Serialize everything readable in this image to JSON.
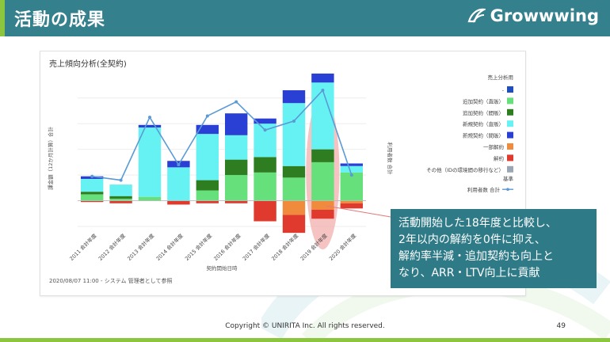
{
  "header": {
    "title": "活動の成果",
    "brand": "Growwwing"
  },
  "colors": {
    "header": "#35808d",
    "accent": "#8cc63f",
    "callout": "#2e7a87"
  },
  "callout": {
    "lines": [
      "活動開始した18年度と比較し、",
      "2年以内の解約を0件に抑え、",
      "解約率半減・追加契約も向上と",
      "なり、ARR・LTV向上に貢献"
    ]
  },
  "footer": {
    "copyright": "Copyright © UNIRITA Inc. All rights reserved.",
    "page": "49"
  },
  "chart_data": {
    "type": "bar",
    "title": "売上傾向分析(全契約)",
    "footnote": "2020/08/07 11:00 - システム 管理者として参照",
    "xlabel": "契約開始日時",
    "ylabel": "課金額（12か月計算）合計",
    "y2label": "利用者数 合計",
    "categories": [
      "2011 会計年度",
      "2012 会計年度",
      "2013 会計年度",
      "2014 会計年度",
      "2015 会計年度",
      "2016 会計年度",
      "2017 会計年度",
      "2018 会計年度",
      "2019 会計年度",
      "2020 会計年度"
    ],
    "ylim": [
      -1,
      4.3
    ],
    "legend": {
      "title": "売上分析用",
      "section2": "基準",
      "placement": "right"
    },
    "series": [
      {
        "name": "-",
        "color": "#1f4fbf",
        "values": [
          0,
          0,
          0,
          0,
          0,
          0,
          0,
          0,
          0,
          0
        ]
      },
      {
        "name": "追加契約（直販）",
        "color": "#66e07a",
        "values": [
          0.25,
          0.08,
          0.15,
          0,
          0.4,
          1.0,
          1.1,
          0.9,
          1.5,
          1.1
        ]
      },
      {
        "name": "追加契約（間販）",
        "color": "#2e7d20",
        "values": [
          0.1,
          0.1,
          0,
          0,
          0.4,
          0.6,
          0.6,
          0.45,
          0.5,
          0
        ]
      },
      {
        "name": "新規契約（直販）",
        "color": "#66f2f2",
        "values": [
          0.5,
          0.45,
          2.7,
          1.3,
          1.8,
          0.95,
          1.3,
          2.45,
          2.6,
          0.25
        ]
      },
      {
        "name": "新規契約（間販）",
        "color": "#2a3fd4",
        "values": [
          0.1,
          0,
          0.1,
          0.25,
          0.35,
          0.85,
          0.2,
          0.5,
          0.35,
          0.1
        ]
      },
      {
        "name": "一部解約",
        "color": "#f08a3c",
        "values": [
          0,
          0,
          0,
          0,
          0,
          0,
          0,
          -0.55,
          -0.35,
          -0.1
        ]
      },
      {
        "name": "解約",
        "color": "#e03a2e",
        "values": [
          -0.05,
          -0.1,
          0,
          -0.15,
          -0.1,
          -0.1,
          -0.8,
          -0.7,
          -0.35,
          -0.2
        ]
      },
      {
        "name": "その他（IDの環境間の移行など）",
        "color": "#9aa6b3",
        "values": [
          0,
          0,
          0,
          0,
          0,
          0,
          0,
          0,
          0,
          0
        ]
      }
    ],
    "line_series": {
      "name": "利用者数 合計",
      "color": "#5a9ad6",
      "values": [
        0.95,
        0.8,
        3.25,
        1.4,
        3.3,
        3.85,
        2.75,
        3.1,
        4.3,
        1.0
      ]
    },
    "highlight": {
      "category": "2019 会計年度"
    }
  }
}
